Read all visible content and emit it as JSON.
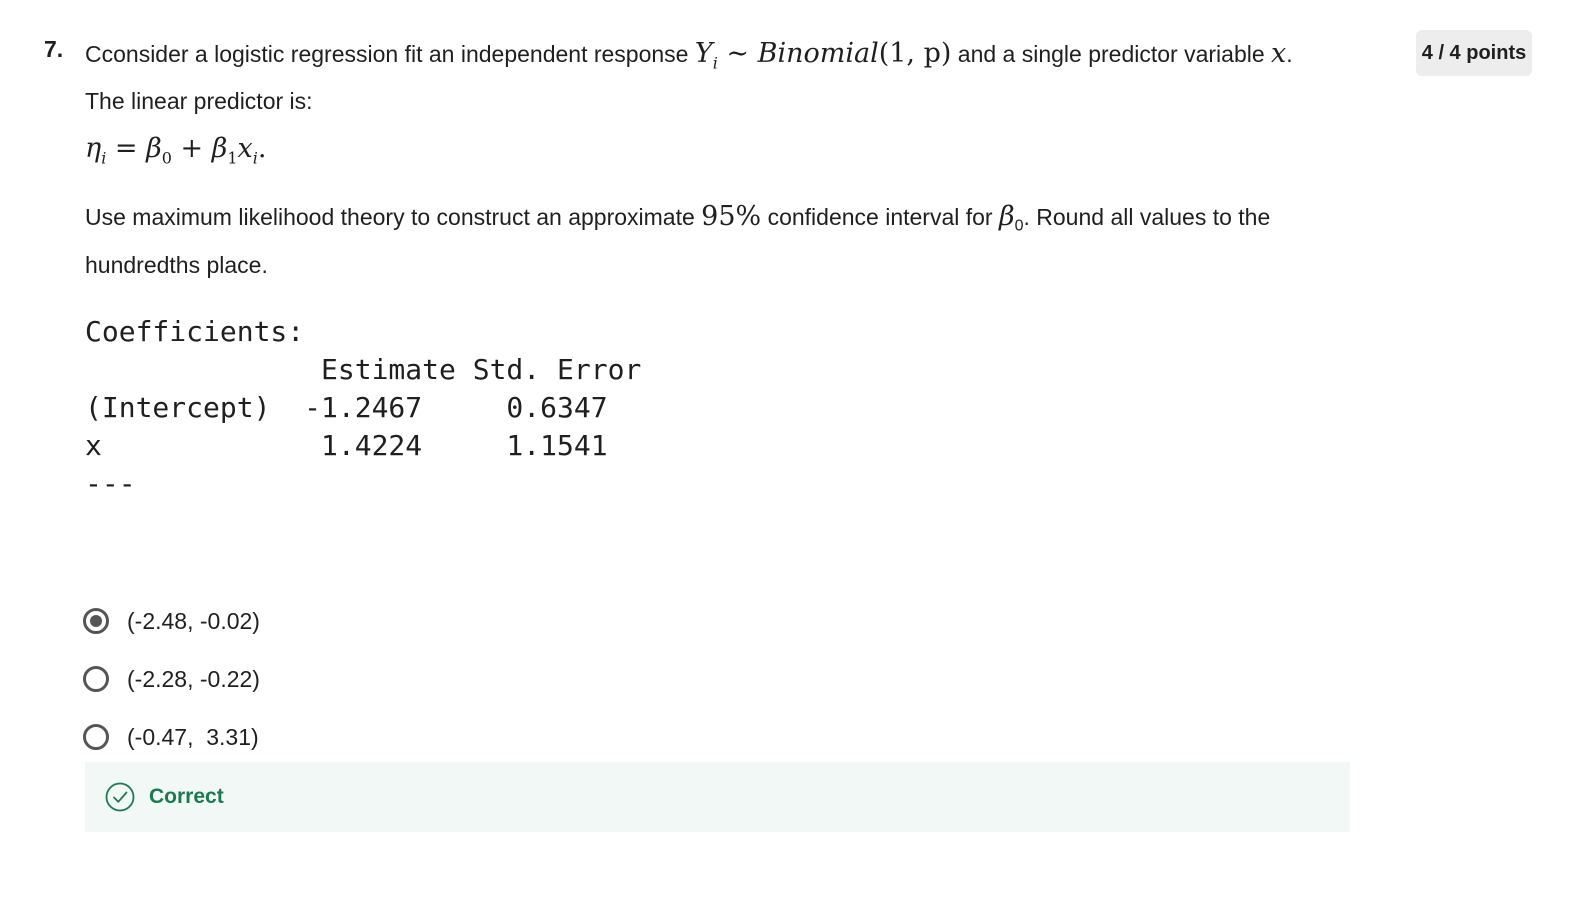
{
  "question": {
    "number": "7.",
    "intro_text": "Cconsider a logistic regression fit an independent response ",
    "response_var": "Y",
    "response_sub": "i",
    "tilde": " ∼ ",
    "dist_name": "Binomial",
    "dist_params": "(1, p)",
    "intro_text2": " and a single predictor variable ",
    "predictor_var": "x",
    "intro_end": ".",
    "line2": "The linear predictor is:",
    "points": "4 / 4 points",
    "equation": {
      "lhs": "η",
      "lhs_sub": "i",
      "eq": " = ",
      "b0": "β",
      "b0_sub": "0",
      "plus": " + ",
      "b1": "β",
      "b1_sub": "1",
      "x": "x",
      "x_sub": "i",
      "end": "."
    },
    "instruction_a": "Use maximum likelihood theory to construct an approximate ",
    "ci_level": "95%",
    "instruction_b": " confidence interval for ",
    "beta": "β",
    "beta_sub": "0",
    "instruction_c": ". Round all values to the hundredths place."
  },
  "code_output": {
    "heading": "Coefficients:",
    "header_row": "              Estimate Std. Error",
    "rows": [
      "(Intercept)  -1.2467     0.6347",
      "x             1.4224     1.1541"
    ],
    "separator": "---"
  },
  "options": [
    {
      "label": "(-2.48, -0.02)",
      "selected": true
    },
    {
      "label": "(-2.28, -0.22)",
      "selected": false
    },
    {
      "label": "(-0.47,  3.31)",
      "selected": false
    }
  ],
  "feedback": {
    "text": "Correct",
    "color": "#1b7a52"
  }
}
